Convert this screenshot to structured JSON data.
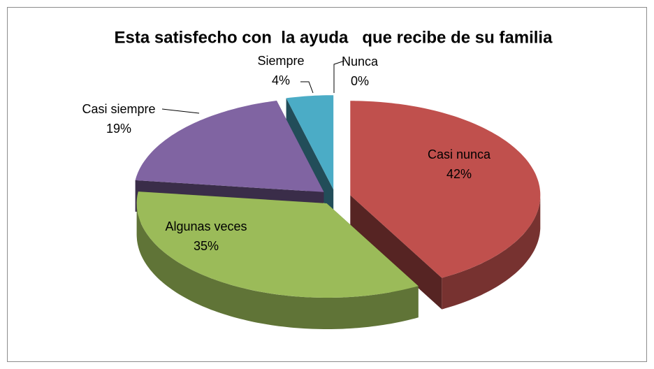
{
  "chart_data": {
    "type": "pie3d",
    "title": "Esta satisfecho con  la ayuda   que recibe de su familia",
    "categories": [
      "Nunca",
      "Casi nunca",
      "Algunas veces",
      "Casi siempre",
      "Siempre"
    ],
    "values": [
      0,
      42,
      35,
      19,
      4
    ],
    "value_labels": [
      "0%",
      "42%",
      "35%",
      "19%",
      "4%"
    ],
    "colors": [
      "#4f81bd",
      "#c0504d",
      "#9bbb59",
      "#8064a2",
      "#4bacc6"
    ]
  }
}
